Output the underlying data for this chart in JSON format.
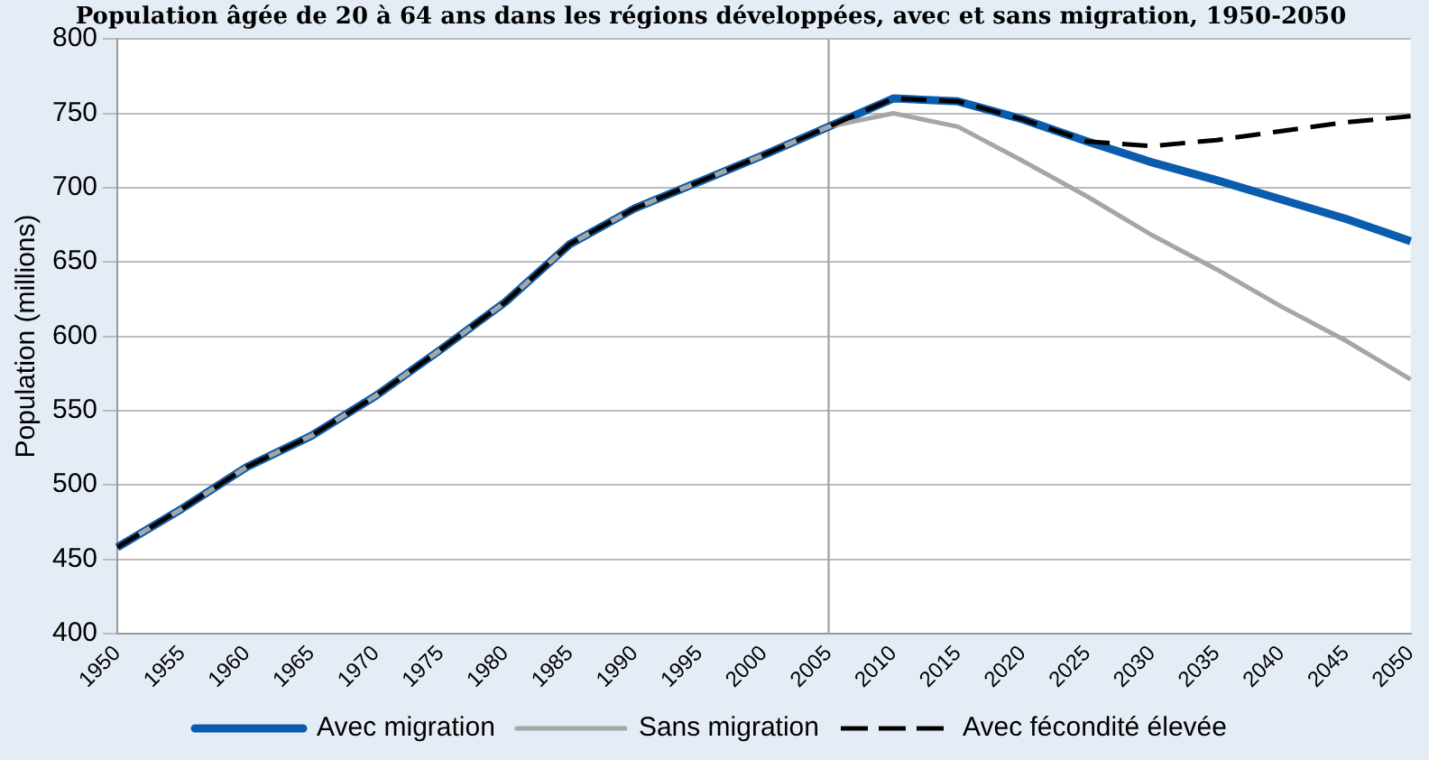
{
  "chart_data": {
    "type": "line",
    "title": "Population âgée de 20 à 64 ans dans les régions développées, avec et sans migration, 1950-2050",
    "ylabel": "Population (millions)",
    "categories": [
      "1950",
      "1955",
      "1960",
      "1965",
      "1970",
      "1975",
      "1980",
      "1985",
      "1990",
      "1995",
      "2000",
      "2005",
      "2010",
      "2015",
      "2020",
      "2025",
      "2030",
      "2035",
      "2040",
      "2045",
      "2050"
    ],
    "series": [
      {
        "name": "Avec migration",
        "color": "#0b5cad",
        "line_style": "solid",
        "values": [
          458,
          484,
          512,
          533,
          560,
          591,
          623,
          662,
          686,
          704,
          722,
          741,
          760,
          758,
          746,
          731,
          717,
          705,
          692,
          679,
          664
        ]
      },
      {
        "name": "Sans migration",
        "color": "#a6a6a6",
        "line_style": "solid",
        "values": [
          458,
          484,
          512,
          533,
          560,
          591,
          623,
          662,
          686,
          704,
          722,
          741,
          750,
          741,
          718,
          694,
          668,
          645,
          620,
          597,
          571
        ]
      },
      {
        "name": "Avec fécondité élevée",
        "color": "#000000",
        "line_style": "dashed",
        "values": [
          458,
          484,
          512,
          533,
          560,
          591,
          623,
          662,
          686,
          704,
          722,
          741,
          760,
          758,
          746,
          731,
          728,
          732,
          738,
          744,
          748
        ]
      }
    ],
    "ylim": [
      400,
      800
    ],
    "yticks": [
      400,
      450,
      500,
      550,
      600,
      650,
      700,
      750,
      800
    ],
    "grid": "y",
    "legend": "bottom",
    "marker": "none",
    "ref_lines": [
      {
        "axis": "x",
        "value": "2005",
        "color": "#a6a6a6"
      }
    ]
  }
}
